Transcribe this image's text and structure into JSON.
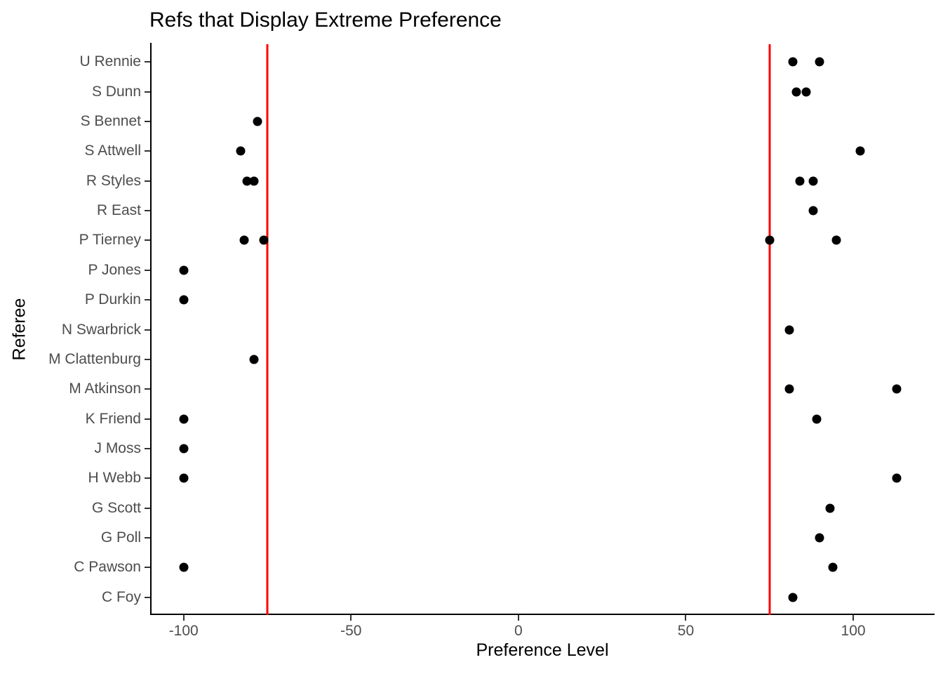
{
  "chart_data": {
    "type": "scatter",
    "title": "Refs that Display Extreme Preference",
    "xlabel": "Preference Level",
    "ylabel": "Referee",
    "xlim": [
      -110,
      124.3
    ],
    "x_ticks": [
      -100,
      -50,
      0,
      50,
      100
    ],
    "grid": false,
    "legend": "none",
    "point_color": "#000000",
    "reference_lines": {
      "values": [
        -75,
        75
      ],
      "color": "#FF0000"
    },
    "categories": [
      "U Rennie",
      "S Dunn",
      "S Bennet",
      "S Attwell",
      "R Styles",
      "R East",
      "P Tierney",
      "P Jones",
      "P Durkin",
      "N Swarbrick",
      "M Clattenburg",
      "M Atkinson",
      "K Friend",
      "J Moss",
      "H Webb",
      "G Scott",
      "G Poll",
      "C Pawson",
      "C Foy"
    ],
    "series": [
      {
        "referee": "U Rennie",
        "values": [
          82,
          90
        ]
      },
      {
        "referee": "S Dunn",
        "values": [
          83,
          86
        ]
      },
      {
        "referee": "S Bennet",
        "values": [
          -78
        ]
      },
      {
        "referee": "S Attwell",
        "values": [
          -83,
          102
        ]
      },
      {
        "referee": "R Styles",
        "values": [
          -81,
          -79,
          84,
          88
        ]
      },
      {
        "referee": "R East",
        "values": [
          88
        ]
      },
      {
        "referee": "P Tierney",
        "values": [
          -82,
          -76,
          75,
          95
        ]
      },
      {
        "referee": "P Jones",
        "values": [
          -100
        ]
      },
      {
        "referee": "P Durkin",
        "values": [
          -100
        ]
      },
      {
        "referee": "N Swarbrick",
        "values": [
          81
        ]
      },
      {
        "referee": "M Clattenburg",
        "values": [
          -79
        ]
      },
      {
        "referee": "M Atkinson",
        "values": [
          81,
          113
        ]
      },
      {
        "referee": "K Friend",
        "values": [
          -100,
          89
        ]
      },
      {
        "referee": "J Moss",
        "values": [
          -100
        ]
      },
      {
        "referee": "H Webb",
        "values": [
          -100,
          113
        ]
      },
      {
        "referee": "G Scott",
        "values": [
          93
        ]
      },
      {
        "referee": "G Poll",
        "values": [
          90
        ]
      },
      {
        "referee": "C Pawson",
        "values": [
          -100,
          94
        ]
      },
      {
        "referee": "C Foy",
        "values": [
          82
        ]
      }
    ]
  }
}
